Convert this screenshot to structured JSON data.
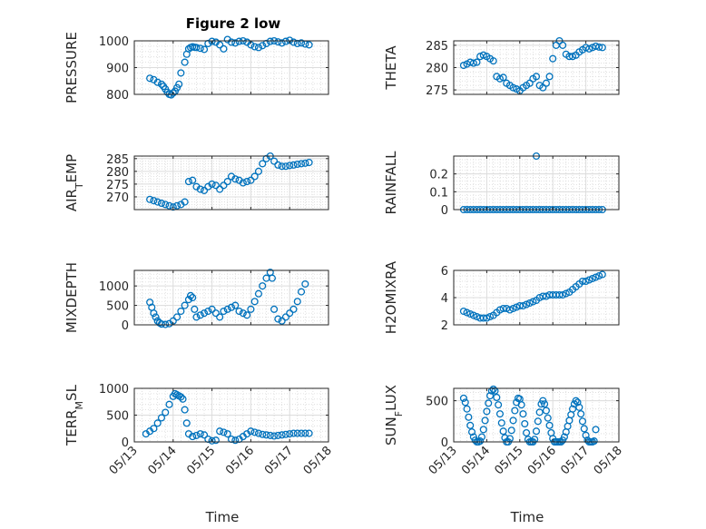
{
  "chart_data": [
    {
      "type": "scatter",
      "title": "Figure 2 low",
      "ylabel": "PRESSURE",
      "ylabel_sub": "",
      "ylabel_rest": "",
      "xlabel": "",
      "ylim": [
        800,
        1000
      ],
      "yticks": [
        800,
        900,
        1000
      ],
      "xlim": [
        0,
        5
      ],
      "xticks": [
        "05/13",
        "05/14",
        "05/15",
        "05/16",
        "05/17",
        "05/18"
      ],
      "show_xticklabels": false,
      "series": [
        {
          "x": [
            0.4,
            0.5,
            0.6,
            0.7,
            0.75,
            0.8,
            0.85,
            0.9,
            0.95,
            1.0,
            1.05,
            1.1,
            1.15,
            1.2,
            1.3,
            1.35,
            1.4,
            1.45,
            1.5,
            1.55,
            1.6,
            1.7,
            1.8,
            1.9,
            2.0,
            2.1,
            2.2,
            2.3,
            2.4,
            2.5,
            2.6,
            2.7,
            2.8,
            2.9,
            3.0,
            3.1,
            3.2,
            3.3,
            3.4,
            3.5,
            3.6,
            3.7,
            3.8,
            3.9,
            4.0,
            4.1,
            4.2,
            4.3,
            4.4,
            4.5
          ],
          "y": [
            860,
            855,
            845,
            838,
            830,
            820,
            808,
            800,
            798,
            805,
            812,
            825,
            838,
            880,
            920,
            950,
            970,
            975,
            978,
            976,
            975,
            972,
            968,
            990,
            998,
            995,
            985,
            970,
            1005,
            995,
            992,
            998,
            1000,
            995,
            985,
            978,
            975,
            982,
            990,
            998,
            1000,
            996,
            992,
            998,
            1002,
            995,
            990,
            992,
            988,
            985
          ]
        }
      ]
    },
    {
      "type": "scatter",
      "title": "",
      "ylabel": "THETA",
      "ylabel_sub": "",
      "ylabel_rest": "",
      "xlabel": "",
      "ylim": [
        274,
        286
      ],
      "yticks": [
        275,
        280,
        285
      ],
      "xlim": [
        0,
        5
      ],
      "xticks": [
        "05/13",
        "05/14",
        "05/15",
        "05/16",
        "05/17",
        "05/18"
      ],
      "show_xticklabels": false,
      "series": [
        {
          "x": [
            0.3,
            0.4,
            0.5,
            0.6,
            0.7,
            0.8,
            0.9,
            1.0,
            1.1,
            1.2,
            1.3,
            1.4,
            1.5,
            1.6,
            1.7,
            1.8,
            1.9,
            2.0,
            2.1,
            2.2,
            2.3,
            2.4,
            2.5,
            2.6,
            2.7,
            2.8,
            2.9,
            3.0,
            3.1,
            3.2,
            3.3,
            3.4,
            3.5,
            3.6,
            3.7,
            3.8,
            3.9,
            4.0,
            4.1,
            4.2,
            4.3,
            4.4,
            4.5
          ],
          "y": [
            280.5,
            280.8,
            281.2,
            281,
            281.2,
            282.5,
            282.8,
            282.5,
            282,
            281.5,
            278,
            277.5,
            277.8,
            276.5,
            276,
            275.5,
            275.2,
            274.8,
            275.5,
            276,
            276.5,
            277.5,
            278,
            276,
            275.5,
            276.5,
            278,
            282,
            285,
            286,
            285,
            283,
            282.5,
            282.5,
            282.8,
            283.5,
            284,
            284.5,
            284.2,
            284.5,
            284.8,
            284.6,
            284.5
          ]
        }
      ]
    },
    {
      "type": "scatter",
      "title": "",
      "ylabel": "AIR",
      "ylabel_sub": "T",
      "ylabel_rest": "EMP",
      "xlabel": "",
      "ylim": [
        265,
        286
      ],
      "yticks": [
        270,
        275,
        280,
        285
      ],
      "xlim": [
        0,
        5
      ],
      "xticks": [
        "05/13",
        "05/14",
        "05/15",
        "05/16",
        "05/17",
        "05/18"
      ],
      "show_xticklabels": false,
      "series": [
        {
          "x": [
            0.4,
            0.5,
            0.6,
            0.7,
            0.8,
            0.9,
            1.0,
            1.1,
            1.2,
            1.3,
            1.4,
            1.5,
            1.6,
            1.7,
            1.8,
            1.9,
            2.0,
            2.1,
            2.2,
            2.3,
            2.4,
            2.5,
            2.6,
            2.7,
            2.8,
            2.9,
            3.0,
            3.1,
            3.2,
            3.3,
            3.4,
            3.5,
            3.6,
            3.7,
            3.8,
            3.9,
            4.0,
            4.1,
            4.2,
            4.3,
            4.4,
            4.5
          ],
          "y": [
            269,
            268.5,
            268,
            267.5,
            267,
            266.5,
            266,
            266.5,
            267,
            268,
            276,
            276.5,
            274,
            273,
            272.5,
            274,
            275,
            274.5,
            273,
            274.5,
            276,
            278,
            277,
            276.5,
            275.5,
            276,
            276.5,
            278,
            280,
            283,
            285,
            286,
            284,
            282.5,
            282,
            282,
            282.3,
            282.5,
            282.8,
            283,
            283.2,
            283.5
          ]
        }
      ]
    },
    {
      "type": "scatter",
      "title": "",
      "ylabel": "RAINFALL",
      "ylabel_sub": "",
      "ylabel_rest": "",
      "xlabel": "",
      "ylim": [
        0,
        0.3
      ],
      "yticks": [
        0,
        0.1,
        0.2
      ],
      "xlim": [
        0,
        5
      ],
      "xticks": [
        "05/13",
        "05/14",
        "05/15",
        "05/16",
        "05/17",
        "05/18"
      ],
      "show_xticklabels": false,
      "series": [
        {
          "x": [
            0.3,
            0.4,
            0.5,
            0.6,
            0.7,
            0.8,
            0.9,
            1.0,
            1.1,
            1.2,
            1.3,
            1.4,
            1.5,
            1.6,
            1.7,
            1.8,
            1.9,
            2.0,
            2.1,
            2.2,
            2.3,
            2.4,
            2.5,
            2.6,
            2.7,
            2.8,
            2.9,
            3.0,
            3.1,
            3.2,
            3.3,
            3.4,
            3.5,
            3.6,
            3.7,
            3.8,
            3.9,
            4.0,
            4.1,
            4.2,
            4.3,
            4.4,
            4.5,
            2.5
          ],
          "y": [
            0,
            0,
            0,
            0,
            0,
            0,
            0,
            0,
            0,
            0,
            0,
            0,
            0,
            0,
            0,
            0,
            0,
            0,
            0,
            0,
            0,
            0,
            0,
            0,
            0,
            0,
            0,
            0,
            0,
            0,
            0,
            0,
            0,
            0,
            0,
            0,
            0,
            0,
            0,
            0,
            0,
            0,
            0,
            0.3
          ]
        }
      ]
    },
    {
      "type": "scatter",
      "title": "",
      "ylabel": "MIXDEPTH",
      "ylabel_sub": "",
      "ylabel_rest": "",
      "xlabel": "",
      "ylim": [
        0,
        1400
      ],
      "yticks": [
        0,
        500,
        1000
      ],
      "xlim": [
        0,
        5
      ],
      "xticks": [
        "05/13",
        "05/14",
        "05/15",
        "05/16",
        "05/17",
        "05/18"
      ],
      "show_xticklabels": false,
      "series": [
        {
          "x": [
            0.4,
            0.45,
            0.5,
            0.55,
            0.6,
            0.65,
            0.7,
            0.8,
            0.9,
            1.0,
            1.1,
            1.2,
            1.3,
            1.4,
            1.45,
            1.5,
            1.55,
            1.6,
            1.7,
            1.8,
            1.9,
            2.0,
            2.1,
            2.2,
            2.3,
            2.4,
            2.5,
            2.6,
            2.7,
            2.8,
            2.9,
            3.0,
            3.1,
            3.2,
            3.3,
            3.4,
            3.5,
            3.55,
            3.6,
            3.7,
            3.8,
            3.9,
            4.0,
            4.1,
            4.2,
            4.3,
            4.4
          ],
          "y": [
            580,
            450,
            300,
            200,
            100,
            50,
            20,
            10,
            30,
            100,
            200,
            350,
            500,
            650,
            750,
            700,
            400,
            200,
            250,
            300,
            350,
            400,
            300,
            200,
            350,
            400,
            450,
            500,
            350,
            300,
            250,
            400,
            600,
            800,
            1000,
            1200,
            1350,
            1200,
            400,
            150,
            100,
            200,
            300,
            400,
            600,
            850,
            1050
          ]
        }
      ]
    },
    {
      "type": "scatter",
      "title": "",
      "ylabel": "H2OMIXRA",
      "ylabel_sub": "",
      "ylabel_rest": "",
      "xlabel": "",
      "ylim": [
        2,
        6
      ],
      "yticks": [
        2,
        4,
        6
      ],
      "xlim": [
        0,
        5
      ],
      "xticks": [
        "05/13",
        "05/14",
        "05/15",
        "05/16",
        "05/17",
        "05/18"
      ],
      "show_xticklabels": false,
      "series": [
        {
          "x": [
            0.3,
            0.4,
            0.5,
            0.6,
            0.7,
            0.8,
            0.9,
            1.0,
            1.1,
            1.2,
            1.3,
            1.4,
            1.5,
            1.6,
            1.7,
            1.8,
            1.9,
            2.0,
            2.1,
            2.2,
            2.3,
            2.4,
            2.5,
            2.6,
            2.7,
            2.8,
            2.9,
            3.0,
            3.1,
            3.2,
            3.3,
            3.4,
            3.5,
            3.6,
            3.7,
            3.8,
            3.9,
            4.0,
            4.1,
            4.2,
            4.3,
            4.4,
            4.5
          ],
          "y": [
            3.0,
            2.9,
            2.8,
            2.7,
            2.6,
            2.5,
            2.5,
            2.5,
            2.6,
            2.7,
            2.9,
            3.1,
            3.2,
            3.2,
            3.1,
            3.2,
            3.3,
            3.4,
            3.4,
            3.5,
            3.6,
            3.7,
            3.8,
            4.0,
            4.1,
            4.1,
            4.2,
            4.2,
            4.2,
            4.2,
            4.2,
            4.3,
            4.4,
            4.6,
            4.8,
            5.0,
            5.2,
            5.2,
            5.3,
            5.4,
            5.5,
            5.6,
            5.7
          ]
        }
      ]
    },
    {
      "type": "scatter",
      "title": "",
      "ylabel": "TERR",
      "ylabel_sub": "M",
      "ylabel_rest": "SL",
      "xlabel": "Time",
      "ylim": [
        0,
        1000
      ],
      "yticks": [
        0,
        500,
        1000
      ],
      "xlim": [
        0,
        5
      ],
      "xticks": [
        "05/13",
        "05/14",
        "05/15",
        "05/16",
        "05/17",
        "05/18"
      ],
      "show_xticklabels": true,
      "series": [
        {
          "x": [
            0.3,
            0.4,
            0.5,
            0.6,
            0.7,
            0.8,
            0.9,
            1.0,
            1.05,
            1.1,
            1.15,
            1.2,
            1.25,
            1.3,
            1.35,
            1.4,
            1.5,
            1.6,
            1.7,
            1.8,
            1.9,
            2.0,
            2.1,
            2.2,
            2.3,
            2.4,
            2.5,
            2.6,
            2.7,
            2.8,
            2.9,
            3.0,
            3.1,
            3.2,
            3.3,
            3.4,
            3.5,
            3.6,
            3.7,
            3.8,
            3.9,
            4.0,
            4.1,
            4.2,
            4.3,
            4.4,
            4.5
          ],
          "y": [
            150,
            200,
            250,
            350,
            450,
            550,
            700,
            850,
            900,
            880,
            860,
            840,
            800,
            600,
            350,
            150,
            100,
            120,
            150,
            130,
            50,
            20,
            30,
            200,
            180,
            150,
            50,
            30,
            50,
            100,
            150,
            200,
            180,
            160,
            140,
            130,
            120,
            110,
            120,
            130,
            140,
            150,
            160,
            160,
            160,
            160,
            160
          ]
        }
      ]
    },
    {
      "type": "scatter",
      "title": "",
      "ylabel": "SUN",
      "ylabel_sub": "F",
      "ylabel_rest": "LUX",
      "xlabel": "Time",
      "ylim": [
        0,
        650
      ],
      "yticks": [
        0,
        500
      ],
      "xlim": [
        0,
        5
      ],
      "xticks": [
        "05/13",
        "05/14",
        "05/15",
        "05/16",
        "05/17",
        "05/18"
      ],
      "show_xticklabels": true,
      "series": [
        {
          "x": [
            0.3,
            0.35,
            0.4,
            0.45,
            0.5,
            0.55,
            0.6,
            0.65,
            0.7,
            0.75,
            0.8,
            0.85,
            0.9,
            0.95,
            1.0,
            1.05,
            1.1,
            1.15,
            1.2,
            1.25,
            1.3,
            1.35,
            1.4,
            1.45,
            1.5,
            1.55,
            1.6,
            1.65,
            1.7,
            1.75,
            1.8,
            1.85,
            1.9,
            1.95,
            2.0,
            2.05,
            2.1,
            2.15,
            2.2,
            2.25,
            2.3,
            2.35,
            2.4,
            2.45,
            2.5,
            2.55,
            2.6,
            2.65,
            2.7,
            2.75,
            2.8,
            2.85,
            2.9,
            2.95,
            3.0,
            3.05,
            3.1,
            3.15,
            3.2,
            3.25,
            3.3,
            3.35,
            3.4,
            3.45,
            3.5,
            3.55,
            3.6,
            3.65,
            3.7,
            3.75,
            3.8,
            3.85,
            3.9,
            3.95,
            4.0,
            4.05,
            4.1,
            4.15,
            4.2,
            4.25,
            4.3
          ],
          "y": [
            530,
            480,
            400,
            300,
            200,
            120,
            60,
            20,
            0,
            0,
            10,
            60,
            150,
            260,
            370,
            470,
            560,
            620,
            640,
            620,
            540,
            450,
            340,
            230,
            130,
            50,
            0,
            0,
            40,
            140,
            260,
            380,
            480,
            530,
            520,
            450,
            340,
            220,
            110,
            30,
            0,
            0,
            0,
            30,
            130,
            250,
            360,
            460,
            500,
            460,
            380,
            290,
            200,
            110,
            40,
            0,
            0,
            0,
            0,
            0,
            20,
            60,
            120,
            190,
            260,
            330,
            400,
            460,
            500,
            480,
            420,
            340,
            250,
            160,
            80,
            20,
            0,
            0,
            0,
            10,
            150
          ]
        }
      ]
    }
  ]
}
